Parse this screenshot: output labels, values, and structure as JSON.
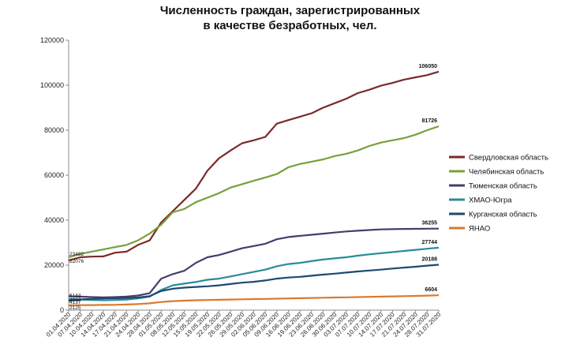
{
  "chart_data": {
    "type": "line",
    "title_lines": [
      "Численность граждан, зарегистрированных",
      "в качестве безработных, чел."
    ],
    "xlabel": "",
    "ylabel": "",
    "ylim": [
      0,
      120000
    ],
    "yticks": [
      0,
      20000,
      40000,
      60000,
      80000,
      100000,
      120000
    ],
    "grid": false,
    "legend_position": "right",
    "x": [
      "01.04.2020",
      "07.04.2020",
      "10.04.2020",
      "14.04.2020",
      "17.04.2020",
      "21.04.2020",
      "24.04.2020",
      "28.04.2020",
      "01.05.2020",
      "08.05.2020",
      "12.05.2020",
      "15.05.2020",
      "19.05.2020",
      "22.05.2020",
      "26.05.2020",
      "29.05.2020",
      "02.06.2020",
      "05.06.2020",
      "09.06.2020",
      "16.06.2020",
      "19.06.2020",
      "23.06.2020",
      "26.06.2020",
      "30.06.2020",
      "03.07.2020",
      "07.07.2020",
      "10.07.2020",
      "14.07.2020",
      "17.07.2020",
      "21.07.2020",
      "24.07.2020",
      "28.07.2020",
      "31.07.2020"
    ],
    "series": [
      {
        "name": "Свердловская область",
        "color": "#7b2a2a",
        "start_label": "22076",
        "end_label": "106050",
        "values": [
          22076,
          23500,
          23800,
          23900,
          25500,
          26000,
          29000,
          31000,
          39000,
          44000,
          49000,
          54000,
          62000,
          67500,
          71000,
          74200,
          75500,
          77000,
          82900,
          84500,
          86000,
          87500,
          90000,
          92000,
          94000,
          96500,
          98000,
          99800,
          101000,
          102500,
          103500,
          104500,
          106050
        ]
      },
      {
        "name": "Челябинская область",
        "color": "#77a03a",
        "start_label": "23482",
        "end_label": "81726",
        "values": [
          23482,
          25000,
          26000,
          27000,
          28000,
          29000,
          31000,
          34000,
          38000,
          43500,
          45000,
          48000,
          50000,
          52000,
          54500,
          56000,
          57500,
          59000,
          60500,
          63500,
          65000,
          66000,
          67000,
          68500,
          69500,
          71000,
          73000,
          74500,
          75500,
          76500,
          78000,
          80000,
          81726
        ]
      },
      {
        "name": "Тюменская область",
        "color": "#4b3a6b",
        "start_label": "6144",
        "end_label": "36255",
        "values": [
          6144,
          6000,
          5800,
          5700,
          5800,
          6000,
          6500,
          7500,
          14000,
          16000,
          17500,
          21000,
          23500,
          24500,
          26000,
          27500,
          28500,
          29500,
          31500,
          32500,
          33000,
          33500,
          34000,
          34500,
          35000,
          35300,
          35600,
          35900,
          36000,
          36100,
          36150,
          36200,
          36255
        ]
      },
      {
        "name": "ХМАО-Югра",
        "color": "#2c8a9b",
        "start_label": "4932",
        "end_label": "27744",
        "values": [
          4932,
          4700,
          4500,
          4400,
          4500,
          4700,
          5200,
          6000,
          9000,
          11000,
          11800,
          12500,
          13500,
          14000,
          15000,
          16000,
          17000,
          18000,
          19500,
          20500,
          21000,
          21800,
          22500,
          23000,
          23500,
          24200,
          24800,
          25300,
          25800,
          26300,
          26800,
          27300,
          27744
        ]
      },
      {
        "name": "Курганская область",
        "color": "#1e4a6e",
        "start_label": "4137",
        "end_label": "20188",
        "values": [
          4137,
          4800,
          5000,
          5200,
          5300,
          5400,
          5600,
          6200,
          8500,
          9500,
          10000,
          10300,
          10600,
          11000,
          11600,
          12200,
          12600,
          13200,
          14000,
          14500,
          14800,
          15300,
          15800,
          16200,
          16700,
          17200,
          17600,
          18000,
          18500,
          18900,
          19300,
          19800,
          20188
        ]
      },
      {
        "name": "ЯНАО",
        "color": "#d97a2e",
        "start_label": "2125",
        "end_label": "6604",
        "values": [
          2125,
          2200,
          2250,
          2300,
          2350,
          2500,
          2700,
          3000,
          3600,
          4000,
          4200,
          4400,
          4500,
          4600,
          4700,
          4800,
          4900,
          5000,
          5100,
          5200,
          5300,
          5400,
          5500,
          5600,
          5700,
          5800,
          5900,
          6000,
          6100,
          6200,
          6300,
          6450,
          6604
        ]
      }
    ]
  }
}
